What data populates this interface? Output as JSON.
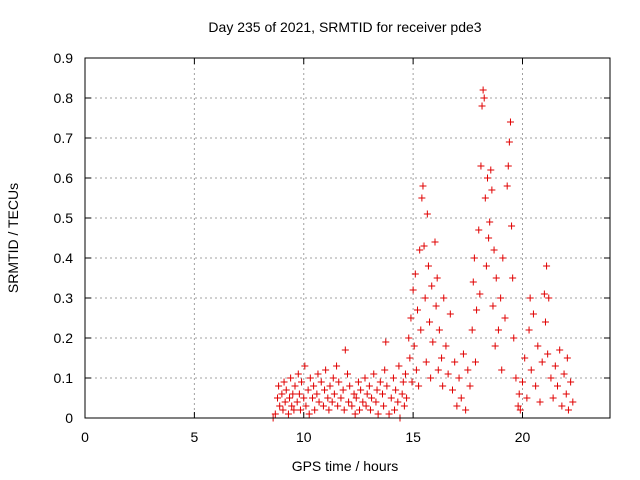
{
  "chart_data": {
    "type": "scatter",
    "title": "Day 235 of 2021, SRMTID for receiver pde3",
    "xlabel": "GPS time / hours",
    "ylabel": "SRMTID / TECUs",
    "xlim": [
      0,
      24
    ],
    "ylim": [
      0,
      0.9
    ],
    "x_ticks": [
      0,
      5,
      10,
      15,
      20
    ],
    "x_tick_labels": [
      "0",
      "5",
      "10",
      "15",
      "20"
    ],
    "y_ticks": [
      0,
      0.1,
      0.2,
      0.3,
      0.4,
      0.5,
      0.6,
      0.7,
      0.8,
      0.9
    ],
    "y_tick_labels": [
      "0",
      "0.1",
      "0.2",
      "0.3",
      "0.4",
      "0.5",
      "0.6",
      "0.7",
      "0.8",
      "0.9"
    ],
    "grid": true,
    "marker": "+",
    "color": "#e00000",
    "series": [
      {
        "name": "pde3",
        "points": [
          [
            8.6,
            0.0
          ],
          [
            8.7,
            0.01
          ],
          [
            8.8,
            0.05
          ],
          [
            8.85,
            0.08
          ],
          [
            8.9,
            0.03
          ],
          [
            9.0,
            0.06
          ],
          [
            9.05,
            0.02
          ],
          [
            9.1,
            0.09
          ],
          [
            9.15,
            0.04
          ],
          [
            9.2,
            0.07
          ],
          [
            9.3,
            0.01
          ],
          [
            9.35,
            0.05
          ],
          [
            9.4,
            0.1
          ],
          [
            9.45,
            0.03
          ],
          [
            9.5,
            0.06
          ],
          [
            9.55,
            0.02
          ],
          [
            9.6,
            0.08
          ],
          [
            9.7,
            0.04
          ],
          [
            9.75,
            0.11
          ],
          [
            9.8,
            0.06
          ],
          [
            9.85,
            0.02
          ],
          [
            9.9,
            0.09
          ],
          [
            10.0,
            0.05
          ],
          [
            10.05,
            0.13
          ],
          [
            10.1,
            0.03
          ],
          [
            10.2,
            0.07
          ],
          [
            10.25,
            0.01
          ],
          [
            10.3,
            0.1
          ],
          [
            10.4,
            0.05
          ],
          [
            10.45,
            0.08
          ],
          [
            10.5,
            0.02
          ],
          [
            10.6,
            0.06
          ],
          [
            10.65,
            0.11
          ],
          [
            10.7,
            0.04
          ],
          [
            10.8,
            0.09
          ],
          [
            10.9,
            0.03
          ],
          [
            10.95,
            0.07
          ],
          [
            11.0,
            0.12
          ],
          [
            11.1,
            0.05
          ],
          [
            11.15,
            0.02
          ],
          [
            11.2,
            0.08
          ],
          [
            11.3,
            0.04
          ],
          [
            11.35,
            0.1
          ],
          [
            11.4,
            0.06
          ],
          [
            11.5,
            0.13
          ],
          [
            11.55,
            0.03
          ],
          [
            11.6,
            0.09
          ],
          [
            11.7,
            0.05
          ],
          [
            11.8,
            0.07
          ],
          [
            11.85,
            0.02
          ],
          [
            11.9,
            0.17
          ],
          [
            12.0,
            0.11
          ],
          [
            12.05,
            0.04
          ],
          [
            12.1,
            0.08
          ],
          [
            12.2,
            0.03
          ],
          [
            12.3,
            0.06
          ],
          [
            12.35,
            0.01
          ],
          [
            12.4,
            0.05
          ],
          [
            12.5,
            0.09
          ],
          [
            12.55,
            0.02
          ],
          [
            12.6,
            0.07
          ],
          [
            12.7,
            0.04
          ],
          [
            12.8,
            0.1
          ],
          [
            12.85,
            0.03
          ],
          [
            12.9,
            0.06
          ],
          [
            13.0,
            0.08
          ],
          [
            13.05,
            0.02
          ],
          [
            13.1,
            0.05
          ],
          [
            13.2,
            0.11
          ],
          [
            13.3,
            0.04
          ],
          [
            13.35,
            0.07
          ],
          [
            13.4,
            0.01
          ],
          [
            13.5,
            0.09
          ],
          [
            13.6,
            0.06
          ],
          [
            13.65,
            0.03
          ],
          [
            13.7,
            0.12
          ],
          [
            13.75,
            0.19
          ],
          [
            13.8,
            0.08
          ],
          [
            13.9,
            0.01
          ],
          [
            14.0,
            0.05
          ],
          [
            14.1,
            0.1
          ],
          [
            14.15,
            0.02
          ],
          [
            14.2,
            0.07
          ],
          [
            14.3,
            0.04
          ],
          [
            14.35,
            0.13
          ],
          [
            14.4,
            0.0
          ],
          [
            14.5,
            0.06
          ],
          [
            14.55,
            0.09
          ],
          [
            14.6,
            0.03
          ],
          [
            14.65,
            0.11
          ],
          [
            14.7,
            0.05
          ],
          [
            14.8,
            0.2
          ],
          [
            14.85,
            0.15
          ],
          [
            14.9,
            0.25
          ],
          [
            14.95,
            0.09
          ],
          [
            15.0,
            0.32
          ],
          [
            15.05,
            0.18
          ],
          [
            15.1,
            0.36
          ],
          [
            15.15,
            0.12
          ],
          [
            15.2,
            0.27
          ],
          [
            15.25,
            0.08
          ],
          [
            15.3,
            0.42
          ],
          [
            15.35,
            0.22
          ],
          [
            15.4,
            0.55
          ],
          [
            15.45,
            0.58
          ],
          [
            15.5,
            0.43
          ],
          [
            15.55,
            0.3
          ],
          [
            15.6,
            0.14
          ],
          [
            15.65,
            0.51
          ],
          [
            15.7,
            0.38
          ],
          [
            15.75,
            0.24
          ],
          [
            15.8,
            0.1
          ],
          [
            15.85,
            0.33
          ],
          [
            15.9,
            0.19
          ],
          [
            16.0,
            0.44
          ],
          [
            16.05,
            0.28
          ],
          [
            16.1,
            0.35
          ],
          [
            16.15,
            0.12
          ],
          [
            16.2,
            0.22
          ],
          [
            16.3,
            0.15
          ],
          [
            16.35,
            0.08
          ],
          [
            16.4,
            0.3
          ],
          [
            16.5,
            0.18
          ],
          [
            16.6,
            0.11
          ],
          [
            16.7,
            0.26
          ],
          [
            16.8,
            0.07
          ],
          [
            16.9,
            0.14
          ],
          [
            17.0,
            0.03
          ],
          [
            17.1,
            0.1
          ],
          [
            17.2,
            0.05
          ],
          [
            17.3,
            0.16
          ],
          [
            17.4,
            0.02
          ],
          [
            17.5,
            0.12
          ],
          [
            17.6,
            0.08
          ],
          [
            17.7,
            0.22
          ],
          [
            17.75,
            0.34
          ],
          [
            17.8,
            0.4
          ],
          [
            17.85,
            0.14
          ],
          [
            17.9,
            0.27
          ],
          [
            18.0,
            0.47
          ],
          [
            18.05,
            0.31
          ],
          [
            18.1,
            0.63
          ],
          [
            18.15,
            0.78
          ],
          [
            18.2,
            0.82
          ],
          [
            18.25,
            0.8
          ],
          [
            18.3,
            0.55
          ],
          [
            18.35,
            0.38
          ],
          [
            18.4,
            0.6
          ],
          [
            18.45,
            0.45
          ],
          [
            18.5,
            0.49
          ],
          [
            18.55,
            0.62
          ],
          [
            18.6,
            0.57
          ],
          [
            18.65,
            0.28
          ],
          [
            18.7,
            0.42
          ],
          [
            18.75,
            0.18
          ],
          [
            18.8,
            0.35
          ],
          [
            18.9,
            0.22
          ],
          [
            19.0,
            0.3
          ],
          [
            19.05,
            0.12
          ],
          [
            19.1,
            0.4
          ],
          [
            19.2,
            0.25
          ],
          [
            19.3,
            0.58
          ],
          [
            19.35,
            0.63
          ],
          [
            19.4,
            0.69
          ],
          [
            19.45,
            0.74
          ],
          [
            19.5,
            0.48
          ],
          [
            19.55,
            0.35
          ],
          [
            19.6,
            0.2
          ],
          [
            19.7,
            0.1
          ],
          [
            19.8,
            0.03
          ],
          [
            19.85,
            0.06
          ],
          [
            19.9,
            0.02
          ],
          [
            20.0,
            0.09
          ],
          [
            20.1,
            0.15
          ],
          [
            20.2,
            0.05
          ],
          [
            20.3,
            0.22
          ],
          [
            20.35,
            0.3
          ],
          [
            20.4,
            0.12
          ],
          [
            20.5,
            0.26
          ],
          [
            20.6,
            0.08
          ],
          [
            20.7,
            0.18
          ],
          [
            20.8,
            0.04
          ],
          [
            20.9,
            0.14
          ],
          [
            21.0,
            0.31
          ],
          [
            21.05,
            0.24
          ],
          [
            21.1,
            0.38
          ],
          [
            21.15,
            0.16
          ],
          [
            21.2,
            0.3
          ],
          [
            21.3,
            0.1
          ],
          [
            21.4,
            0.05
          ],
          [
            21.5,
            0.13
          ],
          [
            21.6,
            0.08
          ],
          [
            21.7,
            0.17
          ],
          [
            21.8,
            0.03
          ],
          [
            21.9,
            0.11
          ],
          [
            22.0,
            0.06
          ],
          [
            22.05,
            0.15
          ],
          [
            22.1,
            0.02
          ],
          [
            22.2,
            0.09
          ],
          [
            22.3,
            0.04
          ]
        ]
      }
    ]
  }
}
